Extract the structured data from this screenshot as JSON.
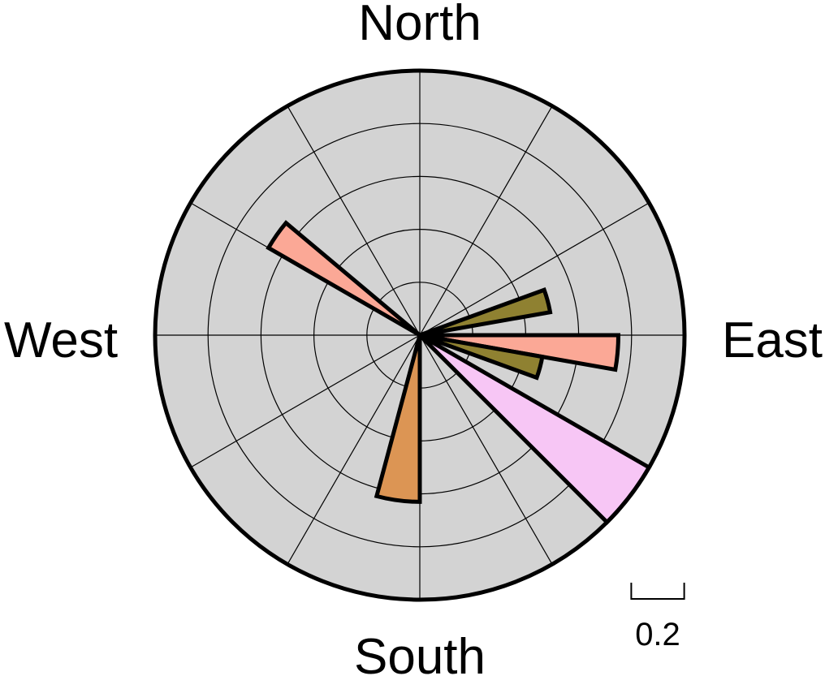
{
  "chart_data": {
    "type": "rose",
    "direction_labels": {
      "north": "North",
      "south": "South",
      "east": "East",
      "west": "West"
    },
    "radial_max": 1.0,
    "ring_step": 0.2,
    "spoke_step_degrees": 30,
    "scale_bar": {
      "value": 0.2,
      "label": "0.2"
    },
    "background_color": "#d3d3d3",
    "sectors": [
      {
        "azimuth_start": 300,
        "azimuth_end": 310,
        "radius": 0.66,
        "color": "#fba896"
      },
      {
        "azimuth_start": 70,
        "azimuth_end": 80,
        "radius": 0.5,
        "color": "#8f8131"
      },
      {
        "azimuth_start": 90,
        "azimuth_end": 100,
        "radius": 0.75,
        "color": "#fba896"
      },
      {
        "azimuth_start": 100,
        "azimuth_end": 110,
        "radius": 0.47,
        "color": "#8f8131"
      },
      {
        "azimuth_start": 120,
        "azimuth_end": 135,
        "radius": 1.0,
        "color": "#f7c6f5"
      },
      {
        "azimuth_start": 180,
        "azimuth_end": 195,
        "radius": 0.63,
        "color": "#dc9554"
      }
    ]
  }
}
